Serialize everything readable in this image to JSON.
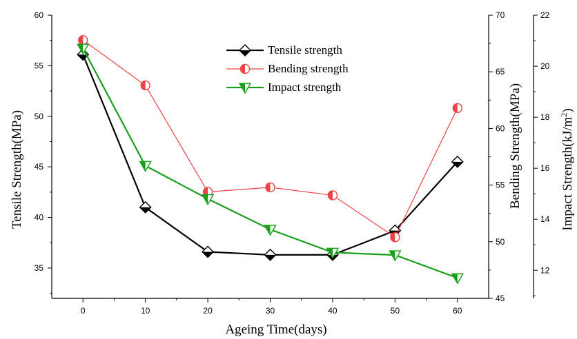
{
  "chart_data": {
    "type": "line",
    "x": [
      0,
      10,
      20,
      30,
      40,
      50,
      60
    ],
    "xlabel": "Ageing Time(days)",
    "xticks": [
      0,
      10,
      20,
      30,
      40,
      50,
      60
    ],
    "xlim": [
      -5,
      65
    ],
    "axes": {
      "left": {
        "label": "Tensile Strength(MPa)",
        "ylim": [
          32,
          60
        ],
        "ticks": [
          35,
          40,
          45,
          50,
          55,
          60
        ]
      },
      "right1": {
        "label": "Bending Strength(MPa)",
        "ylim": [
          45,
          70
        ],
        "ticks": [
          45,
          50,
          55,
          60,
          65,
          70
        ]
      },
      "right2": {
        "label": "Impact Strength(kJ/m",
        "label_sup": "2",
        "label_close": ")",
        "ylim": [
          10.9,
          22
        ],
        "ticks": [
          12,
          14,
          16,
          18,
          20,
          22
        ]
      }
    },
    "series": [
      {
        "name": "Tensile strength",
        "axis": "left",
        "color": "#000000",
        "marker": "half-diamond",
        "values": [
          56.1,
          41.0,
          36.6,
          36.3,
          36.3,
          38.7,
          45.5
        ]
      },
      {
        "name": "Bending strength",
        "axis": "right1",
        "color": "#ee4444",
        "marker": "half-circle",
        "values": [
          67.8,
          63.8,
          54.4,
          54.8,
          54.1,
          50.4,
          61.8
        ]
      },
      {
        "name": "Impact strength",
        "axis": "right2",
        "color": "#18a018",
        "marker": "half-triangle-down",
        "values": [
          20.7,
          16.1,
          14.8,
          13.6,
          12.7,
          12.6,
          11.7
        ]
      }
    ],
    "legend_position": "top-center",
    "grid": false
  }
}
